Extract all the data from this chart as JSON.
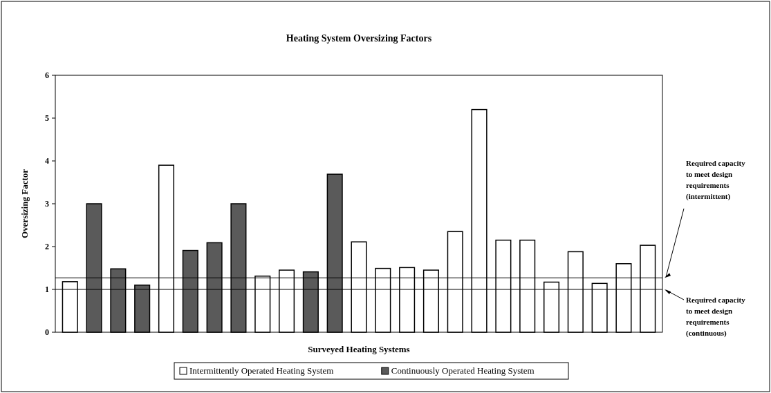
{
  "chart_data": {
    "type": "bar",
    "title": "Heating System Oversizing Factors",
    "xlabel": "Surveyed Heating Systems",
    "ylabel": "Oversizing Factor",
    "categories": [
      null,
      null,
      null,
      null,
      null,
      null,
      null,
      null,
      null,
      null,
      null,
      null,
      null,
      null,
      null,
      null,
      null,
      null,
      null,
      null,
      null,
      null,
      null,
      null,
      null
    ],
    "series": [
      {
        "name": "Intermittently Operated Heating System",
        "color": "#ffffff",
        "values": [
          1.18,
          null,
          null,
          null,
          3.9,
          null,
          null,
          null,
          1.31,
          1.45,
          null,
          null,
          2.11,
          1.49,
          1.51,
          1.45,
          2.35,
          5.2,
          2.15,
          2.15,
          1.17,
          1.88,
          1.14,
          1.6,
          2.03
        ]
      },
      {
        "name": "Continuously Operated Heating System",
        "color": "#5a5a5a",
        "values": [
          null,
          3.0,
          1.48,
          1.1,
          null,
          1.91,
          2.09,
          3.0,
          null,
          null,
          1.41,
          3.69,
          null,
          null,
          null,
          null,
          null,
          null,
          null,
          null,
          null,
          null,
          null,
          null,
          null
        ]
      }
    ],
    "ylim": [
      0,
      6
    ],
    "yticks": [
      0,
      1,
      2,
      3,
      4,
      5,
      6
    ],
    "grid": false,
    "legend": "bottom",
    "ref_lines": [
      {
        "axis": "y",
        "value": 1.27,
        "label": "Required capacity to meet design requirements (intermittent)",
        "color": "#000000"
      },
      {
        "axis": "y",
        "value": 1.0,
        "label": "Required capacity to meet design requirements (continuous)",
        "color": "#000000"
      }
    ]
  }
}
